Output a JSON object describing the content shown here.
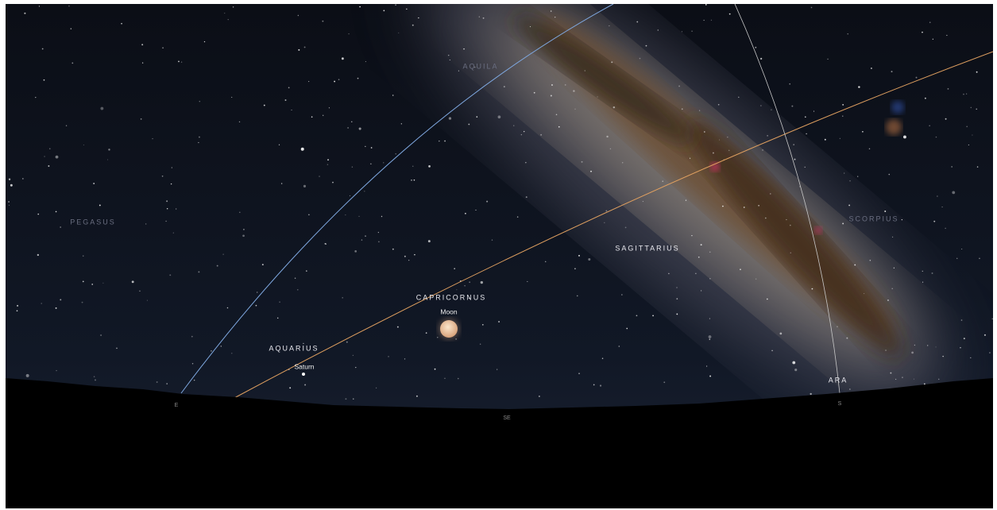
{
  "sky": {
    "constellations": [
      "AQUILA",
      "PEGASUS",
      "SCORPIUS",
      "SAGITTARIUS",
      "CAPRICORNUS",
      "AQUARIUS",
      "ARA"
    ],
    "objects": [
      "Moon",
      "Saturn"
    ],
    "compass": [
      "E",
      "SE",
      "S"
    ]
  }
}
